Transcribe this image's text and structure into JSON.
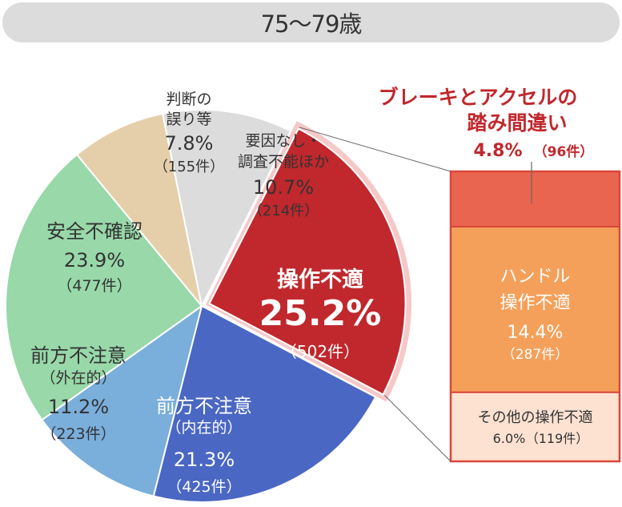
{
  "header": {
    "age_group": "75〜79歳"
  },
  "colors": {
    "operation_error": "#c0282d",
    "forward_internal": "#4a67c3",
    "forward_external": "#7aaedb",
    "safety_check": "#98d8a9",
    "misjudgment": "#e5cfaa",
    "unknown": "#dcdcdc",
    "pedal": "#ea6550",
    "steering": "#f5a05a",
    "other_op": "#fde1d1"
  },
  "chart_data": [
    {
      "type": "pie",
      "start_angle_deg": 27,
      "direction": "clockwise",
      "slices": [
        {
          "id": "operation",
          "lines": [
            "操作不適"
          ],
          "percent_label": "25.2%",
          "count_label": "（502件）",
          "value": 25.2,
          "count": 502,
          "color": "#c0282d",
          "exploded": true
        },
        {
          "id": "forward-internal",
          "lines": [
            "前方不注意",
            "（内在的）"
          ],
          "percent_label": "21.3%",
          "count_label": "（425件）",
          "value": 21.3,
          "count": 425,
          "color": "#4a67c3"
        },
        {
          "id": "forward-external",
          "lines": [
            "前方不注意",
            "（外在的）"
          ],
          "percent_label": "11.2%",
          "count_label": "（223件）",
          "value": 11.2,
          "count": 223,
          "color": "#7aaedb"
        },
        {
          "id": "safety-check",
          "lines": [
            "安全不確認"
          ],
          "percent_label": "23.9%",
          "count_label": "（477件）",
          "value": 23.9,
          "count": 477,
          "color": "#98d8a9"
        },
        {
          "id": "misjudgment",
          "lines": [
            "判断の",
            "誤り等"
          ],
          "percent_label": "7.8%",
          "count_label": "（155件）",
          "value": 7.8,
          "count": 155,
          "color": "#e5cfaa"
        },
        {
          "id": "unknown",
          "lines": [
            "要因なし・",
            "調査不能ほか"
          ],
          "percent_label": "10.7%",
          "count_label": "（214件）",
          "value": 10.7,
          "count": 214,
          "color": "#dcdcdc"
        }
      ]
    },
    {
      "type": "bar",
      "stacked": true,
      "breakdown_of": "操作不適",
      "segments": [
        {
          "id": "pedal",
          "lines": [
            "ブレーキとアクセルの",
            "踏み間違い"
          ],
          "percent_label": "4.8%",
          "count_label": "（96件）",
          "value": 4.8,
          "count": 96,
          "color": "#ea6550"
        },
        {
          "id": "steering",
          "lines": [
            "ハンドル",
            "操作不適"
          ],
          "percent_label": "14.4%",
          "count_label": "（287件）",
          "value": 14.4,
          "count": 287,
          "color": "#f5a05a"
        },
        {
          "id": "other",
          "lines": [
            "その他の操作不適"
          ],
          "percent_label": "6.0%",
          "count_label": "（119件）",
          "value": 6.0,
          "count": 119,
          "color": "#fde1d1"
        }
      ]
    }
  ]
}
